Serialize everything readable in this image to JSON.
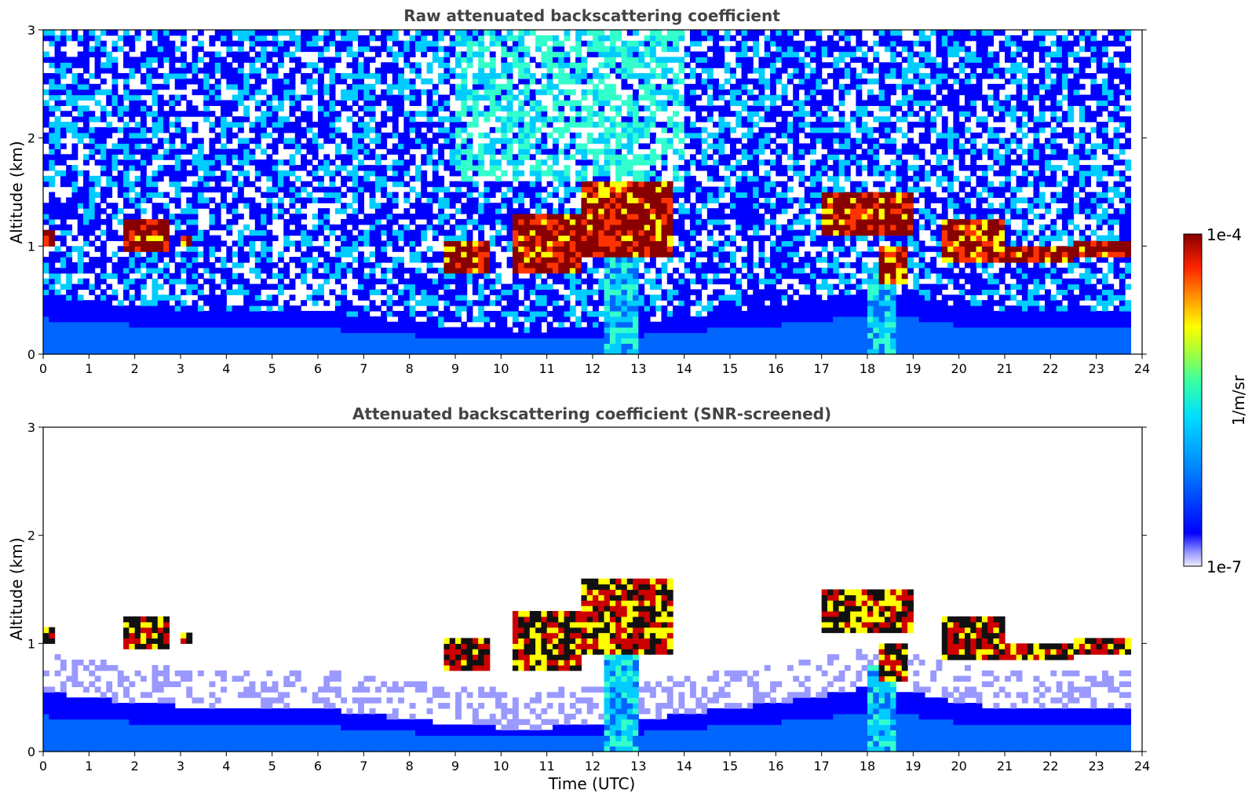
{
  "chart_data": [
    {
      "type": "heatmap",
      "title": "Raw attenuated backscattering coefficient",
      "xlabel": "",
      "ylabel": "Altitude (km)",
      "xlim": [
        0,
        24
      ],
      "ylim": [
        0,
        3
      ],
      "xticks": [
        0,
        1,
        2,
        3,
        4,
        5,
        6,
        7,
        8,
        9,
        10,
        11,
        12,
        13,
        14,
        15,
        16,
        17,
        18,
        19,
        20,
        21,
        22,
        23,
        24
      ],
      "yticks": [
        0,
        1,
        2,
        3
      ],
      "data_extent_x": [
        0,
        23.75
      ],
      "screened": false,
      "aerosol_top_km": [
        [
          0,
          0.55
        ],
        [
          1,
          0.5
        ],
        [
          2,
          0.45
        ],
        [
          3,
          0.42
        ],
        [
          4,
          0.42
        ],
        [
          5,
          0.42
        ],
        [
          6,
          0.4
        ],
        [
          7,
          0.35
        ],
        [
          8,
          0.3
        ],
        [
          9,
          0.25
        ],
        [
          10,
          0.22
        ],
        [
          11,
          0.22
        ],
        [
          12,
          0.25
        ],
        [
          13,
          0.28
        ],
        [
          14,
          0.35
        ],
        [
          15,
          0.4
        ],
        [
          16,
          0.45
        ],
        [
          17,
          0.52
        ],
        [
          18,
          0.6
        ],
        [
          19,
          0.55
        ],
        [
          20,
          0.45
        ],
        [
          21,
          0.4
        ],
        [
          22,
          0.4
        ],
        [
          23,
          0.4
        ],
        [
          23.75,
          0.4
        ]
      ],
      "cloud_layers": [
        {
          "t_start": 0.0,
          "t_end": 0.25,
          "base_km": 1.0,
          "top_km": 1.15
        },
        {
          "t_start": 1.8,
          "t_end": 2.8,
          "base_km": 0.95,
          "top_km": 1.25
        },
        {
          "t_start": 2.95,
          "t_end": 3.3,
          "base_km": 0.98,
          "top_km": 1.12
        },
        {
          "t_start": 8.8,
          "t_end": 9.8,
          "base_km": 0.75,
          "top_km": 1.05
        },
        {
          "t_start": 10.2,
          "t_end": 11.8,
          "base_km": 0.75,
          "top_km": 1.3
        },
        {
          "t_start": 11.8,
          "t_end": 13.8,
          "base_km": 0.9,
          "top_km": 1.6
        },
        {
          "t_start": 17.0,
          "t_end": 19.0,
          "base_km": 1.1,
          "top_km": 1.5
        },
        {
          "t_start": 18.2,
          "t_end": 18.9,
          "base_km": 0.65,
          "top_km": 1.0
        },
        {
          "t_start": 19.6,
          "t_end": 21.0,
          "base_km": 0.85,
          "top_km": 1.25
        },
        {
          "t_start": 21.0,
          "t_end": 22.5,
          "base_km": 0.85,
          "top_km": 1.0
        },
        {
          "t_start": 22.5,
          "t_end": 23.75,
          "base_km": 0.88,
          "top_km": 1.07
        }
      ],
      "precip_shafts": [
        {
          "t_start": 12.2,
          "t_end": 13.0,
          "top_km": 1.2
        },
        {
          "t_start": 18.0,
          "t_end": 18.6,
          "top_km": 0.8
        }
      ]
    },
    {
      "type": "heatmap",
      "title": "Attenuated backscattering coefficient (SNR-screened)",
      "xlabel": "Time (UTC)",
      "ylabel": "Altitude (km)",
      "xlim": [
        0,
        24
      ],
      "ylim": [
        0,
        3
      ],
      "xticks": [
        0,
        1,
        2,
        3,
        4,
        5,
        6,
        7,
        8,
        9,
        10,
        11,
        12,
        13,
        14,
        15,
        16,
        17,
        18,
        19,
        20,
        21,
        22,
        23,
        24
      ],
      "yticks": [
        0,
        1,
        2,
        3
      ],
      "data_extent_x": [
        0,
        23.75
      ],
      "screened": true
    }
  ],
  "colorbar": {
    "label": "1/m/sr",
    "min_label": "1e-7",
    "max_label": "1e-4",
    "scale": "log",
    "colors": [
      "#eeeeff",
      "#ccccff",
      "#9999ff",
      "#0000ff",
      "#0066ff",
      "#00ccff",
      "#33ffcc",
      "#99ff66",
      "#ffff00",
      "#ff9900",
      "#ff3300",
      "#cc0000",
      "#880000"
    ]
  }
}
